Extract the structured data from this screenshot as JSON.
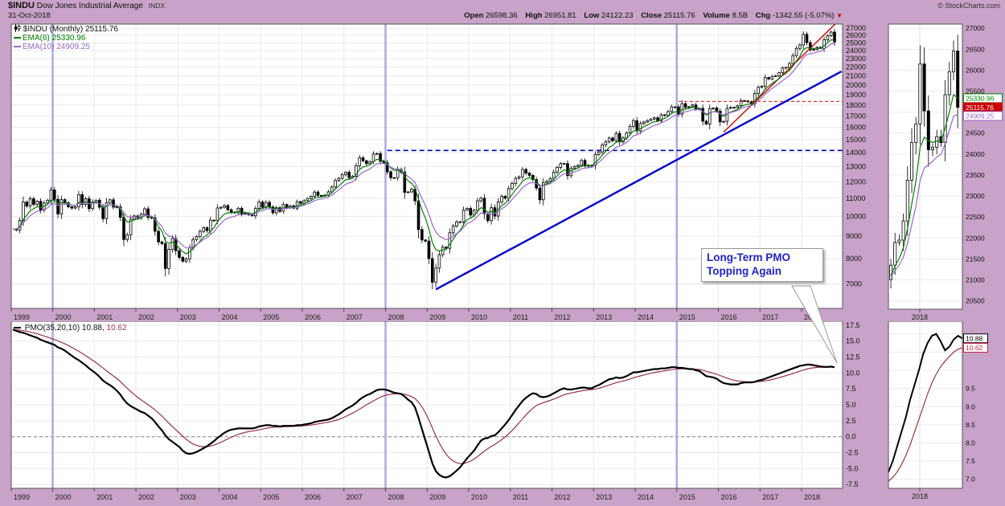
{
  "header": {
    "symbol": "$INDU",
    "name": "Dow Jones Industrial Average",
    "exchange": "INDX",
    "credit": "© StockCharts.com",
    "date": "31-Oct-2018",
    "quote": {
      "open_label": "Open",
      "open": "26598.36",
      "high_label": "High",
      "high": "26951.81",
      "low_label": "Low",
      "low": "24122.23",
      "close_label": "Close",
      "close": "25115.76",
      "volume_label": "Volume",
      "volume": "8.5B",
      "chg_label": "Chg",
      "chg": "-1342.55 (-5.07%)",
      "direction": "▼"
    }
  },
  "legend": {
    "price": "$INDU (Monthly) 25115.76",
    "ema6": "EMA(6) 25330.96",
    "ema10": "EMA(10) 24909.25",
    "pmo_black": "PMO(35,20,10) 10.88,",
    "pmo_red": "10.62"
  },
  "annotation": {
    "line1": "Long-Term PMO",
    "line2": "Topping Again"
  },
  "colors": {
    "background": "#C8A2C8",
    "panel": "#FFFFFF",
    "border": "#555555",
    "grid": "#E9E9E9",
    "year_highlight": "#ABABE0",
    "candle": "#000000",
    "ema6": "#008000",
    "ema10": "#9966CC",
    "pmo": "#000000",
    "pmo_signal": "#993344",
    "trend_blue": "#0000CC",
    "dashed_blue": "#0000BB",
    "dashed_red": "#CC0000",
    "annotation_text": "#2222CC"
  },
  "chart_data": {
    "main_price": {
      "type": "candlestick",
      "title": "$INDU (Monthly) 25115.76",
      "interval": "monthly",
      "x_start": "1999-01",
      "x_end": "2018-10",
      "scale": "log",
      "ylim": [
        6150,
        27600
      ],
      "yticks": [
        7000,
        8000,
        9000,
        10000,
        11000,
        12000,
        13000,
        14000,
        15000,
        16000,
        17000,
        18000,
        19000,
        20000,
        21000,
        22000,
        23000,
        24000,
        25000,
        26000,
        27000
      ],
      "year_labels": [
        "1999",
        "2000",
        "2001",
        "2002",
        "2003",
        "2004",
        "2005",
        "2006",
        "2007",
        "2008",
        "2009",
        "2010",
        "2011",
        "2012",
        "2013",
        "2014",
        "2015",
        "2016",
        "2017",
        "2018"
      ],
      "highlight_years": [
        2000,
        2008,
        2015
      ],
      "closes": [
        9358,
        9307,
        9786,
        10789,
        10560,
        10971,
        10655,
        10829,
        10337,
        10730,
        10878,
        11497,
        10940,
        10128,
        10922,
        10734,
        10522,
        10448,
        10522,
        11215,
        10651,
        10971,
        10414,
        10787,
        10887,
        10495,
        9879,
        10735,
        10912,
        10502,
        10523,
        9950,
        8848,
        9075,
        9852,
        10021,
        9920,
        10106,
        10404,
        9946,
        9925,
        9243,
        8737,
        8664,
        7592,
        8397,
        8896,
        8342,
        8054,
        7891,
        7992,
        8480,
        8850,
        8985,
        9234,
        9416,
        9275,
        9801,
        9782,
        10454,
        10488,
        10584,
        10358,
        10226,
        10188,
        10435,
        10140,
        10174,
        10080,
        10027,
        10428,
        10783,
        10490,
        10766,
        10504,
        10193,
        10467,
        10275,
        10641,
        10482,
        10569,
        10440,
        10806,
        10718,
        10865,
        10993,
        11109,
        11367,
        11168,
        11150,
        11186,
        11381,
        11679,
        12080,
        12222,
        12463,
        12622,
        12269,
        12354,
        13063,
        13628,
        13409,
        13212,
        13358,
        13896,
        13930,
        13372,
        13265,
        12650,
        12266,
        12263,
        12820,
        12638,
        11350,
        11378,
        11544,
        10851,
        9325,
        8829,
        8776,
        8001,
        7063,
        7609,
        8168,
        8500,
        8447,
        9172,
        9496,
        9712,
        9713,
        10345,
        10428,
        10067,
        10325,
        10857,
        11009,
        10137,
        9774,
        10466,
        10015,
        10788,
        11118,
        11006,
        11578,
        11892,
        12226,
        12320,
        12811,
        12570,
        12414,
        12143,
        11614,
        10913,
        11955,
        12046,
        12218,
        12633,
        12952,
        13212,
        13214,
        12393,
        12880,
        13009,
        13091,
        13437,
        13096,
        13026,
        13104,
        13861,
        14054,
        14579,
        14840,
        15116,
        14910,
        15500,
        14810,
        15130,
        15546,
        16086,
        16577,
        15699,
        16322,
        16458,
        16581,
        16717,
        16827,
        16563,
        17098,
        17043,
        17391,
        17828,
        17823,
        17165,
        18133,
        17776,
        17841,
        18011,
        17620,
        17690,
        16528,
        16285,
        17664,
        17720,
        17425,
        16466,
        16517,
        17685,
        17774,
        17787,
        17930,
        18432,
        18401,
        18308,
        18142,
        19124,
        19763,
        19864,
        20812,
        20663,
        20941,
        21009,
        21350,
        21891,
        21948,
        22405,
        23377,
        24272,
        24719,
        26149,
        25029,
        24103,
        24163,
        24416,
        24271,
        25415,
        25965,
        26458,
        25115.76
      ],
      "ema_overlays": [
        {
          "name": "EMA(6)",
          "period": 6,
          "last_value": 25330.96
        },
        {
          "name": "EMA(10)",
          "period": 10,
          "last_value": 24909.25
        }
      ],
      "lines": {
        "blue_dashed_level": 14164,
        "blue_dashed_from": "2008-01",
        "red_dashed_level": 18350,
        "red_dashed_from": "2015-01",
        "blue_trend": {
          "from": [
            "2009-03",
            6800
          ],
          "to": [
            "2018-12",
            21500
          ]
        },
        "red_trend": {
          "from": [
            "2016-02",
            15600
          ],
          "to": [
            "2018-12",
            28500
          ]
        }
      },
      "last": 25115.76
    },
    "main_pmo": {
      "type": "line",
      "title": "PMO(35,20,10)",
      "ylim": [
        -8.1,
        18.1
      ],
      "yticks": [
        17.5,
        15.0,
        12.5,
        10.0,
        7.5,
        5.0,
        2.5,
        0.0,
        -2.5,
        -5.0,
        -7.5
      ],
      "zero_line": true,
      "signal_period": 10,
      "last_pmo": 10.88,
      "last_signal": 10.62,
      "pmo": [
        16.8,
        16.6,
        16.4,
        16.3,
        16.1,
        15.9,
        15.7,
        15.5,
        15.2,
        15.0,
        14.8,
        14.6,
        14.4,
        14.0,
        13.8,
        13.5,
        13.1,
        12.7,
        12.3,
        12.0,
        11.6,
        11.2,
        10.7,
        10.3,
        9.9,
        9.4,
        8.8,
        8.4,
        8.1,
        7.7,
        7.2,
        6.6,
        5.8,
        5.2,
        4.8,
        4.5,
        4.2,
        3.9,
        3.7,
        3.3,
        2.9,
        2.3,
        1.6,
        1.0,
        0.2,
        -0.4,
        -0.8,
        -1.2,
        -1.6,
        -2.2,
        -2.6,
        -2.7,
        -2.6,
        -2.4,
        -2.1,
        -1.8,
        -1.5,
        -1.1,
        -0.7,
        -0.2,
        0.2,
        0.6,
        0.9,
        1.1,
        1.2,
        1.3,
        1.3,
        1.3,
        1.3,
        1.3,
        1.4,
        1.6,
        1.7,
        1.8,
        1.8,
        1.7,
        1.7,
        1.6,
        1.7,
        1.7,
        1.7,
        1.7,
        1.8,
        1.8,
        1.9,
        2.0,
        2.1,
        2.3,
        2.4,
        2.5,
        2.6,
        2.7,
        2.9,
        3.2,
        3.5,
        3.9,
        4.3,
        4.6,
        4.9,
        5.3,
        5.8,
        6.2,
        6.5,
        6.7,
        7.0,
        7.3,
        7.4,
        7.4,
        7.3,
        7.1,
        6.9,
        6.8,
        6.7,
        6.3,
        5.8,
        5.4,
        4.6,
        3.0,
        1.2,
        -0.6,
        -2.4,
        -4.2,
        -5.4,
        -6.0,
        -6.3,
        -6.4,
        -6.2,
        -5.8,
        -5.3,
        -4.8,
        -4.1,
        -3.4,
        -2.8,
        -2.2,
        -1.4,
        -0.6,
        -0.3,
        -0.2,
        0.1,
        0.2,
        0.7,
        1.3,
        1.9,
        2.6,
        3.4,
        4.2,
        4.9,
        5.6,
        6.1,
        6.5,
        6.8,
        6.7,
        6.3,
        6.2,
        6.3,
        6.5,
        6.8,
        7.1,
        7.4,
        7.6,
        7.4,
        7.4,
        7.5,
        7.6,
        7.7,
        7.7,
        7.6,
        7.6,
        7.9,
        8.1,
        8.4,
        8.7,
        9.0,
        9.1,
        9.3,
        9.2,
        9.3,
        9.5,
        9.8,
        10.1,
        10.1,
        10.2,
        10.3,
        10.4,
        10.5,
        10.6,
        10.6,
        10.7,
        10.7,
        10.8,
        10.9,
        10.9,
        10.8,
        10.8,
        10.7,
        10.6,
        10.6,
        10.4,
        10.3,
        9.9,
        9.5,
        9.4,
        9.3,
        9.1,
        8.7,
        8.4,
        8.3,
        8.2,
        8.2,
        8.2,
        8.4,
        8.5,
        8.5,
        8.5,
        8.6,
        8.8,
        8.9,
        9.1,
        9.3,
        9.5,
        9.7,
        9.9,
        10.1,
        10.3,
        10.5,
        10.7,
        10.9,
        11.1,
        11.2,
        11.3,
        11.3,
        11.2,
        11.1,
        11.0,
        10.95,
        10.95,
        11.0,
        10.88
      ]
    },
    "inset_price": {
      "type": "candlestick",
      "x_label": "2018",
      "ylim": [
        20300,
        27100
      ],
      "yticks": [
        27000,
        26500,
        26000,
        25500,
        25000,
        24500,
        24000,
        23500,
        23000,
        22500,
        22000,
        21500,
        21000,
        20500
      ],
      "closes": [
        21009,
        21350,
        21891,
        21948,
        22405,
        23377,
        24272,
        24719,
        26149,
        25029,
        24103,
        24163,
        24416,
        24271,
        25415,
        25965,
        26458,
        25115.76
      ],
      "price_tags": [
        {
          "text": "25330.96",
          "value": 25330.96,
          "color": "#008800",
          "filled": false
        },
        {
          "text": "25115.76",
          "value": 25115.76,
          "color": "#CC0000",
          "filled": true
        },
        {
          "text": "24909.25",
          "value": 24909.25,
          "color": "#9966CC",
          "filled": false
        }
      ]
    },
    "inset_pmo": {
      "type": "line",
      "x_label": "2018",
      "ylim": [
        6.75,
        11.35
      ],
      "yticks": [
        9.5,
        9.0,
        8.5,
        8.0,
        7.5,
        7.0
      ],
      "pmo": [
        7.2,
        7.5,
        7.9,
        8.3,
        8.7,
        9.2,
        9.6,
        10.0,
        10.45,
        10.75,
        10.95,
        11.0,
        10.8,
        10.55,
        10.65,
        10.85,
        10.95,
        10.88
      ],
      "signal": [
        6.95,
        7.05,
        7.2,
        7.4,
        7.65,
        7.95,
        8.3,
        8.65,
        9.0,
        9.35,
        9.65,
        9.9,
        10.1,
        10.25,
        10.38,
        10.5,
        10.58,
        10.62
      ],
      "tags": [
        {
          "text": "10.88",
          "value": 10.88,
          "color": "#000000"
        },
        {
          "text": "10.62",
          "value": 10.62,
          "color": "#CC2244"
        }
      ]
    }
  }
}
